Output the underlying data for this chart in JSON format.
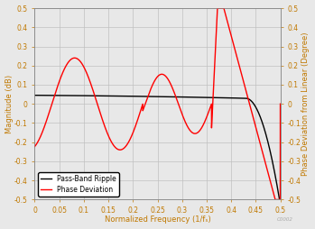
{
  "title": "",
  "xlabel": "Normalized Frequency (1/fₛ)",
  "ylabel_left": "Magnitude (dB)",
  "ylabel_right": "Phase Deviation from Linear (Degree)",
  "xlim": [
    0,
    0.5
  ],
  "ylim": [
    -0.5,
    0.5
  ],
  "xticks": [
    0,
    0.05,
    0.1,
    0.15,
    0.2,
    0.25,
    0.3,
    0.35,
    0.4,
    0.45,
    0.5
  ],
  "yticks": [
    -0.5,
    -0.4,
    -0.3,
    -0.2,
    -0.1,
    0,
    0.1,
    0.2,
    0.3,
    0.4,
    0.5
  ],
  "legend_labels": [
    "Pass-Band Ripple",
    "Phase Deviation"
  ],
  "legend_line_colors": [
    "black",
    "red"
  ],
  "grid_color": "#c0c0c0",
  "axis_label_color": "#c07800",
  "tick_color": "#c07800",
  "background_color": "#e8e8e8",
  "watermark": "C0002"
}
